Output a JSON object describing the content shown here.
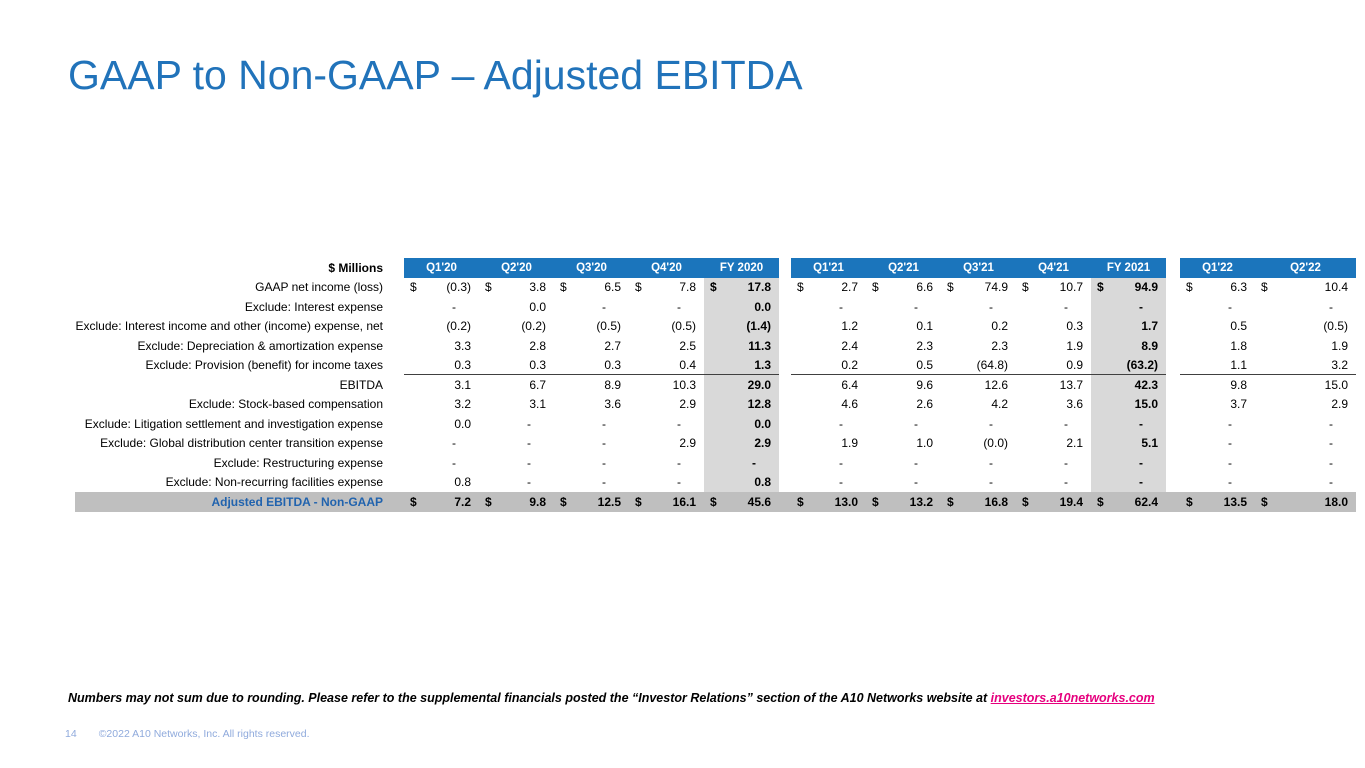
{
  "slide": {
    "title": "GAAP to Non-GAAP – Adjusted EBITDA",
    "footnote_prefix": "Numbers may not sum due to rounding. Please refer to the supplemental financials posted the “Investor Relations” section of the A10 Networks website at ",
    "footnote_link": "investors.a10networks.com",
    "page_number": "14",
    "copyright": "©2022 A10 Networks, Inc. All rights reserved."
  },
  "colors": {
    "title_blue": "#2173BA",
    "header_blue": "#1B75BC",
    "fy_gray": "#D9D9D9",
    "total_gray": "#BFBFBF",
    "accent_blue": "#2163AE",
    "link_pink": "#E6007E",
    "footer_blue": "#8FAADC"
  },
  "table": {
    "units_label": "$ Millions",
    "dollar_symbol": "$",
    "column_groups": [
      {
        "headers": [
          "Q1'20",
          "Q2'20",
          "Q3'20",
          "Q4'20",
          "FY 2020"
        ]
      },
      {
        "headers": [
          "Q1'21",
          "Q2'21",
          "Q3'21",
          "Q4'21",
          "FY 2021"
        ]
      },
      {
        "headers": [
          "Q1'22",
          "Q2'22"
        ]
      }
    ],
    "rows": [
      {
        "label": "GAAP net income (loss)",
        "dollar": true,
        "underline": false,
        "total": false,
        "values": [
          "(0.3)",
          "3.8",
          "6.5",
          "7.8",
          "17.8",
          "2.7",
          "6.6",
          "74.9",
          "10.7",
          "94.9",
          "6.3",
          "10.4"
        ]
      },
      {
        "label": "Exclude:  Interest expense",
        "dollar": false,
        "underline": false,
        "total": false,
        "values": [
          "-",
          "0.0",
          "-",
          "-",
          "0.0",
          "-",
          "-",
          "-",
          "-",
          "-",
          "-",
          "-"
        ]
      },
      {
        "label": "Exclude:  Interest income and other (income) expense, net",
        "dollar": false,
        "underline": false,
        "total": false,
        "values": [
          "(0.2)",
          "(0.2)",
          "(0.5)",
          "(0.5)",
          "(1.4)",
          "1.2",
          "0.1",
          "0.2",
          "0.3",
          "1.7",
          "0.5",
          "(0.5)"
        ]
      },
      {
        "label": "Exclude:  Depreciation & amortization expense",
        "dollar": false,
        "underline": false,
        "total": false,
        "values": [
          "3.3",
          "2.8",
          "2.7",
          "2.5",
          "11.3",
          "2.4",
          "2.3",
          "2.3",
          "1.9",
          "8.9",
          "1.8",
          "1.9"
        ]
      },
      {
        "label": "Exclude:  Provision (benefit) for income taxes",
        "dollar": false,
        "underline": true,
        "total": false,
        "values": [
          "0.3",
          "0.3",
          "0.3",
          "0.4",
          "1.3",
          "0.2",
          "0.5",
          "(64.8)",
          "0.9",
          "(63.2)",
          "1.1",
          "3.2"
        ]
      },
      {
        "label": "EBITDA",
        "dollar": false,
        "underline": false,
        "total": false,
        "values": [
          "3.1",
          "6.7",
          "8.9",
          "10.3",
          "29.0",
          "6.4",
          "9.6",
          "12.6",
          "13.7",
          "42.3",
          "9.8",
          "15.0"
        ]
      },
      {
        "label": "Exclude:  Stock-based compensation",
        "dollar": false,
        "underline": false,
        "total": false,
        "values": [
          "3.2",
          "3.1",
          "3.6",
          "2.9",
          "12.8",
          "4.6",
          "2.6",
          "4.2",
          "3.6",
          "15.0",
          "3.7",
          "2.9"
        ]
      },
      {
        "label": "Exclude: Litigation settlement and investigation expense",
        "dollar": false,
        "underline": false,
        "total": false,
        "values": [
          "0.0",
          "-",
          "-",
          "-",
          "0.0",
          "-",
          "-",
          "-",
          "-",
          "-",
          "-",
          "-"
        ]
      },
      {
        "label": "Exclude: Global distribution center transition expense",
        "dollar": false,
        "underline": false,
        "total": false,
        "values": [
          "-",
          "-",
          "-",
          "2.9",
          "2.9",
          "1.9",
          "1.0",
          "(0.0)",
          "2.1",
          "5.1",
          "-",
          "-"
        ]
      },
      {
        "label": "Exclude: Restructuring expense",
        "dollar": false,
        "underline": false,
        "total": false,
        "values": [
          "-",
          "-",
          "-",
          "-",
          "-",
          "-",
          "-",
          "-",
          "-",
          "-",
          "-",
          "-"
        ]
      },
      {
        "label": "Exclude: Non-recurring facilities expense",
        "dollar": false,
        "underline": false,
        "total": false,
        "values": [
          "0.8",
          "-",
          "-",
          "-",
          "0.8",
          "-",
          "-",
          "-",
          "-",
          "-",
          "-",
          "-"
        ]
      },
      {
        "label": "Adjusted EBITDA - Non-GAAP",
        "dollar": true,
        "underline": false,
        "total": true,
        "values": [
          "7.2",
          "9.8",
          "12.5",
          "16.1",
          "45.6",
          "13.0",
          "13.2",
          "16.8",
          "19.4",
          "62.4",
          "13.5",
          "18.0"
        ]
      }
    ]
  }
}
